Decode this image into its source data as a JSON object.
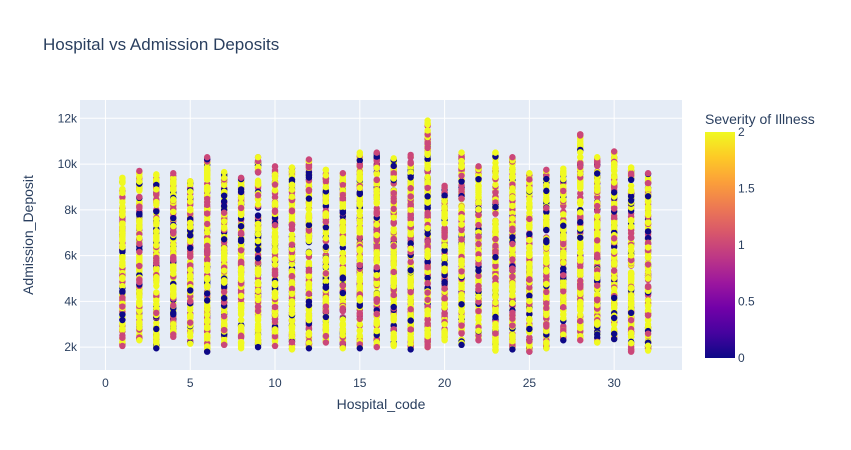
{
  "chart_data": {
    "type": "scatter",
    "title": "Hospital vs Admission Deposits",
    "xlabel": "Hospital_code",
    "ylabel": "Admission_Deposit",
    "xlim": [
      -1.5,
      34
    ],
    "ylim": [
      1000,
      12800
    ],
    "x_ticks": [
      0,
      5,
      10,
      15,
      20,
      25,
      30
    ],
    "x_tick_labels": [
      "0",
      "5",
      "10",
      "15",
      "20",
      "25",
      "30"
    ],
    "y_ticks": [
      2000,
      4000,
      6000,
      8000,
      10000,
      12000
    ],
    "y_tick_labels": [
      "2k",
      "4k",
      "6k",
      "8k",
      "10k",
      "12k"
    ],
    "grid": true,
    "colorbar": {
      "title": "Severity of Illness",
      "range": [
        0,
        2
      ],
      "ticks": [
        0,
        0.5,
        1,
        1.5,
        2
      ],
      "tick_labels": [
        "0",
        "0.5",
        "1",
        "1.5",
        "2"
      ],
      "colorscale": [
        "#0d0887",
        "#46039f",
        "#7201a8",
        "#9c179e",
        "#bd3786",
        "#d8576b",
        "#ed7953",
        "#fb9f3a",
        "#fdca26",
        "#f0f921"
      ]
    },
    "series": [
      {
        "color_field": "Severity of Illness",
        "columns": [
          {
            "x": 1,
            "ymin": 2050,
            "ymax": 9400
          },
          {
            "x": 2,
            "ymin": 2300,
            "ymax": 9700
          },
          {
            "x": 3,
            "ymin": 1950,
            "ymax": 9550
          },
          {
            "x": 4,
            "ymin": 2450,
            "ymax": 9600
          },
          {
            "x": 5,
            "ymin": 2150,
            "ymax": 9250
          },
          {
            "x": 6,
            "ymin": 1800,
            "ymax": 10300
          },
          {
            "x": 7,
            "ymin": 2100,
            "ymax": 9650
          },
          {
            "x": 8,
            "ymin": 1950,
            "ymax": 9400
          },
          {
            "x": 9,
            "ymin": 2000,
            "ymax": 10300
          },
          {
            "x": 10,
            "ymin": 2050,
            "ymax": 9900
          },
          {
            "x": 11,
            "ymin": 1900,
            "ymax": 9850
          },
          {
            "x": 12,
            "ymin": 1950,
            "ymax": 10200
          },
          {
            "x": 13,
            "ymin": 2200,
            "ymax": 9750
          },
          {
            "x": 14,
            "ymin": 1950,
            "ymax": 9600
          },
          {
            "x": 15,
            "ymin": 1950,
            "ymax": 10500
          },
          {
            "x": 16,
            "ymin": 2000,
            "ymax": 10500
          },
          {
            "x": 17,
            "ymin": 2050,
            "ymax": 10250
          },
          {
            "x": 18,
            "ymin": 1900,
            "ymax": 10400
          },
          {
            "x": 19,
            "ymin": 2000,
            "ymax": 11900
          },
          {
            "x": 20,
            "ymin": 2300,
            "ymax": 9050
          },
          {
            "x": 21,
            "ymin": 2100,
            "ymax": 10500
          },
          {
            "x": 22,
            "ymin": 2300,
            "ymax": 9900
          },
          {
            "x": 23,
            "ymin": 1850,
            "ymax": 10500
          },
          {
            "x": 24,
            "ymin": 1900,
            "ymax": 10300
          },
          {
            "x": 25,
            "ymin": 1800,
            "ymax": 9600
          },
          {
            "x": 26,
            "ymin": 1950,
            "ymax": 9750
          },
          {
            "x": 27,
            "ymin": 2300,
            "ymax": 9800
          },
          {
            "x": 28,
            "ymin": 2300,
            "ymax": 11300
          },
          {
            "x": 29,
            "ymin": 2200,
            "ymax": 10300
          },
          {
            "x": 30,
            "ymin": 2350,
            "ymax": 10550
          },
          {
            "x": 31,
            "ymin": 1800,
            "ymax": 9850
          },
          {
            "x": 32,
            "ymin": 1850,
            "ymax": 9600
          }
        ]
      }
    ]
  }
}
